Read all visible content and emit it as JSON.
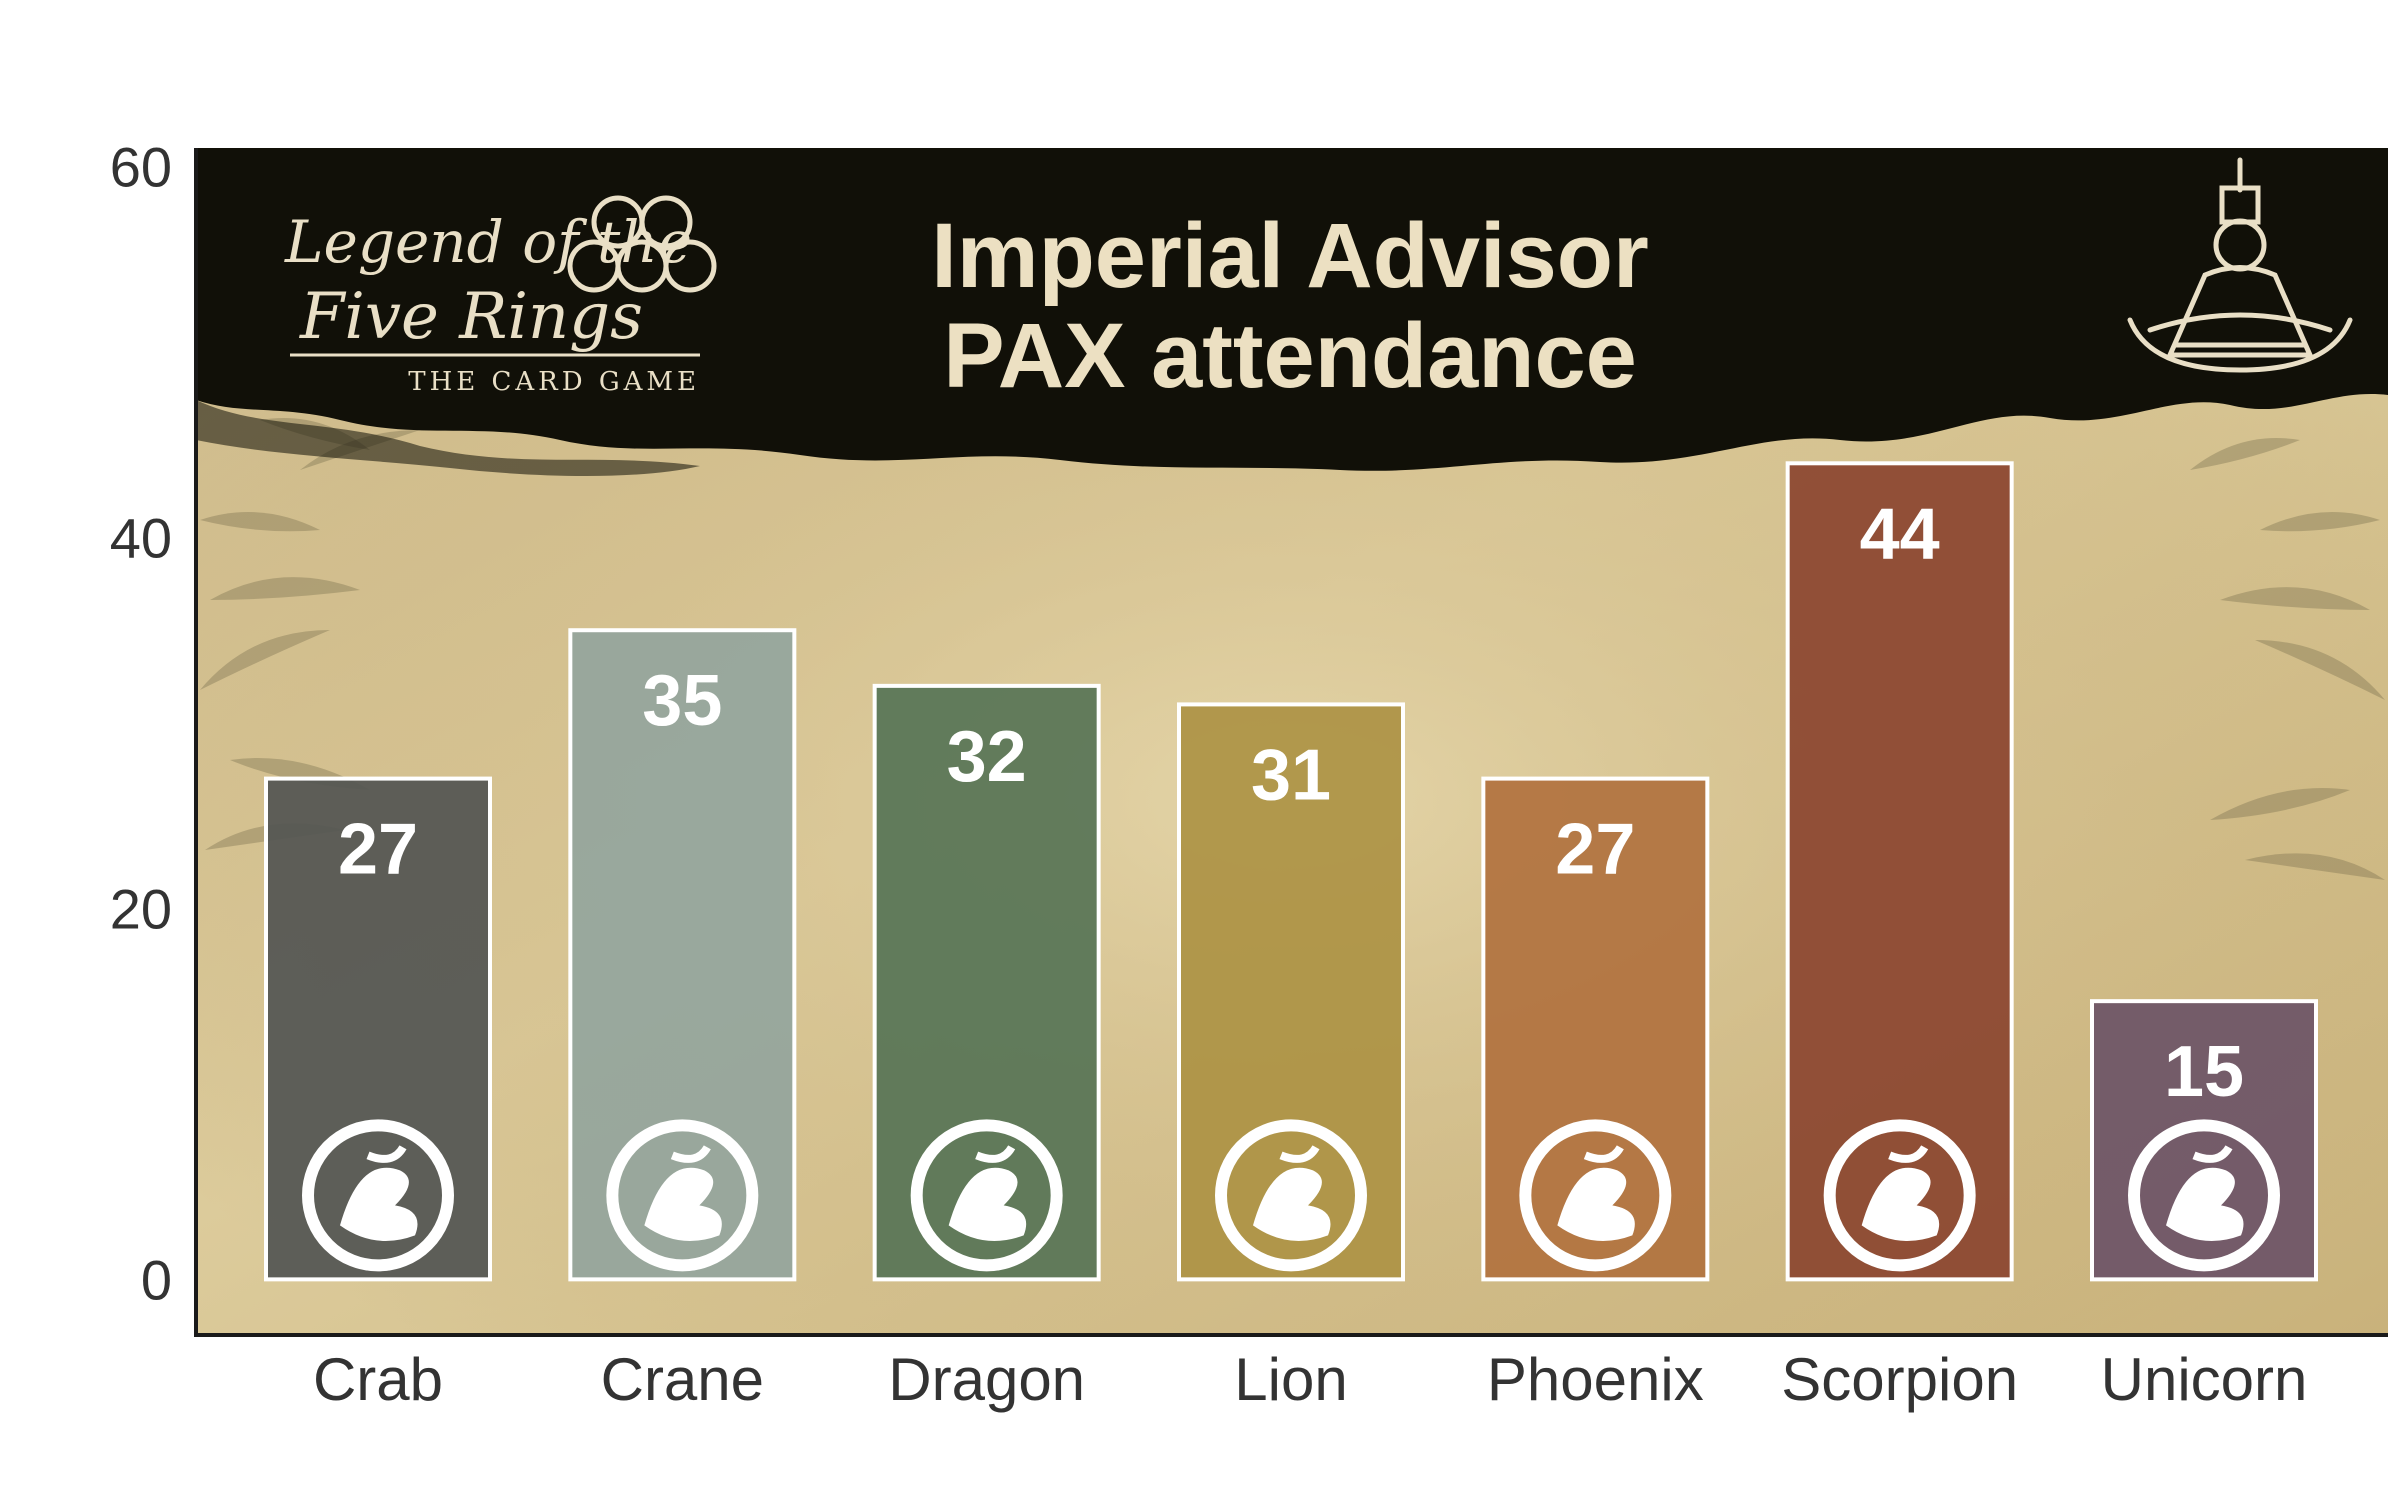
{
  "chart_data": {
    "type": "bar",
    "title_lines": [
      "Imperial Advisor",
      "PAX attendance"
    ],
    "categories": [
      "Crab",
      "Crane",
      "Dragon",
      "Lion",
      "Phoenix",
      "Scorpion",
      "Unicorn"
    ],
    "values": [
      27,
      35,
      32,
      31,
      27,
      44,
      15
    ],
    "bar_colors": [
      "#535552",
      "#94a59d",
      "#577456",
      "#ad9244",
      "#b1723f",
      "#8b4530",
      "#6c5467"
    ],
    "ylim": [
      -3,
      61
    ],
    "yticks": [
      0,
      20,
      40,
      60
    ],
    "xlabel": "",
    "ylabel": "",
    "grid": false,
    "value_labels": true,
    "colors": {
      "title": "#ece0c2",
      "banner": "#111008",
      "paper": "#d8c696",
      "axis": "#1a1a1a",
      "bar_outline": "#ffffff"
    }
  },
  "logo": {
    "line1": "Legend of the",
    "line2": "Five Rings",
    "line3": "THE CARD GAME"
  },
  "icons": {
    "bar_icon": "clan-mon-icon",
    "corner_icon": "emperor-figure-icon"
  }
}
